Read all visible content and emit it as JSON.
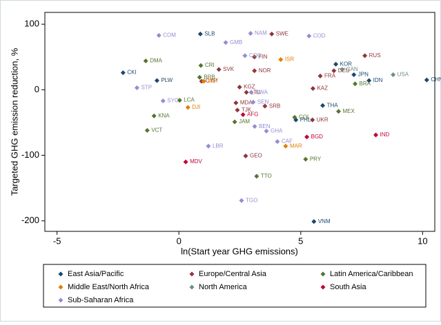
{
  "chart_data": {
    "type": "scatter",
    "x_label": "ln(Start year GHG emissions)",
    "y_label": "Targeted GHG emission reduction, %",
    "xlim": [
      -5.5,
      10.5
    ],
    "xticks": [
      -5,
      0,
      5,
      10
    ],
    "ylim": [
      -216,
      118
    ],
    "yticks": [
      100,
      0,
      -100,
      -200
    ],
    "grid": false,
    "legend_position": "bottom",
    "series": [
      {
        "name": "East Asia/Pacific",
        "color": "#1a476f",
        "x": [
          -2.29,
          -0.9,
          0.88,
          6.44,
          7.18,
          7.8,
          10.17,
          5.9,
          4.8,
          5.54
        ],
        "values": [
          26,
          14,
          85,
          39,
          23,
          14,
          15,
          -24,
          -46,
          -201
        ],
        "labels": [
          "CKI",
          "PLW",
          "SLB",
          "KOR",
          "JPN",
          "IDN",
          "CHN",
          "THA",
          "PHL",
          "VNM"
        ]
      },
      {
        "name": "Europe/Central Asia",
        "color": "#90353b",
        "x": [
          3.81,
          7.63,
          3.1,
          5.48,
          2.74,
          2.34,
          2.4,
          2.49,
          6.36,
          5.8,
          5.5,
          3.53,
          1.64,
          3.1,
          0.93,
          2.77
        ],
        "values": [
          85,
          52,
          50,
          -46,
          -101,
          -20,
          -31,
          4,
          29,
          21,
          2,
          -25,
          31,
          29,
          13,
          -4
        ],
        "labels": [
          "SWE",
          "RUS",
          "FIN",
          "UKR",
          "GEO",
          "MDA",
          "TJK",
          "KGZ",
          "DEU",
          "FRA",
          "KAZ",
          "SRB",
          "SVK",
          "NOR",
          "CYP",
          "LTU"
        ]
      },
      {
        "name": "Latin America/Caribbean",
        "color": "#55752f",
        "x": [
          -1.36,
          0.9,
          0.85,
          -1.02,
          -1.3,
          2.29,
          4.75,
          6.55,
          5.2,
          3.19,
          7.23,
          0.03
        ],
        "values": [
          44,
          37,
          19,
          -40,
          -62,
          -49,
          -42,
          -33,
          -106,
          -132,
          9,
          -16
        ],
        "labels": [
          "DMA",
          "CRI",
          "BRB",
          "KNA",
          "VCT",
          "JAM",
          "COL",
          "MEX",
          "PRY",
          "TTO",
          "BRA",
          "LCA"
        ]
      },
      {
        "name": "Middle East/North Africa",
        "color": "#e37e00",
        "x": [
          1.02,
          0.37,
          4.18,
          4.38
        ],
        "values": [
          13,
          -27,
          46,
          -86
        ],
        "labels": [
          "MLT",
          "DJI",
          "ISR",
          "MAR"
        ]
      },
      {
        "name": "North America",
        "color": "#6e8e84",
        "x": [
          8.79,
          6.7
        ],
        "values": [
          23,
          31
        ],
        "labels": [
          "USA",
          "CAN"
        ]
      },
      {
        "name": "South Asia",
        "color": "#c10534",
        "x": [
          8.08,
          0.28,
          5.25,
          2.63
        ],
        "values": [
          -69,
          -110,
          -72,
          -38
        ],
        "labels": [
          "IND",
          "MDV",
          "BGD",
          "AFG"
        ]
      },
      {
        "name": "Sub-Saharan Africa",
        "color": "#938dd2",
        "x": [
          -0.82,
          -1.72,
          -0.65,
          1.21,
          2.57,
          2.94,
          1.92,
          2.71,
          5.34,
          3.11,
          3.59,
          3.05,
          2.97,
          4.04
        ],
        "values": [
          83,
          3,
          -17,
          -86,
          -169,
          86,
          72,
          52,
          82,
          -56,
          -63,
          -19,
          -4,
          -79
        ],
        "labels": [
          "COM",
          "STP",
          "SYC",
          "LBR",
          "TGO",
          "NAM",
          "GMB",
          "COG",
          "COD",
          "BEN",
          "GHA",
          "SEN",
          "BWA",
          "CAF"
        ]
      }
    ]
  }
}
